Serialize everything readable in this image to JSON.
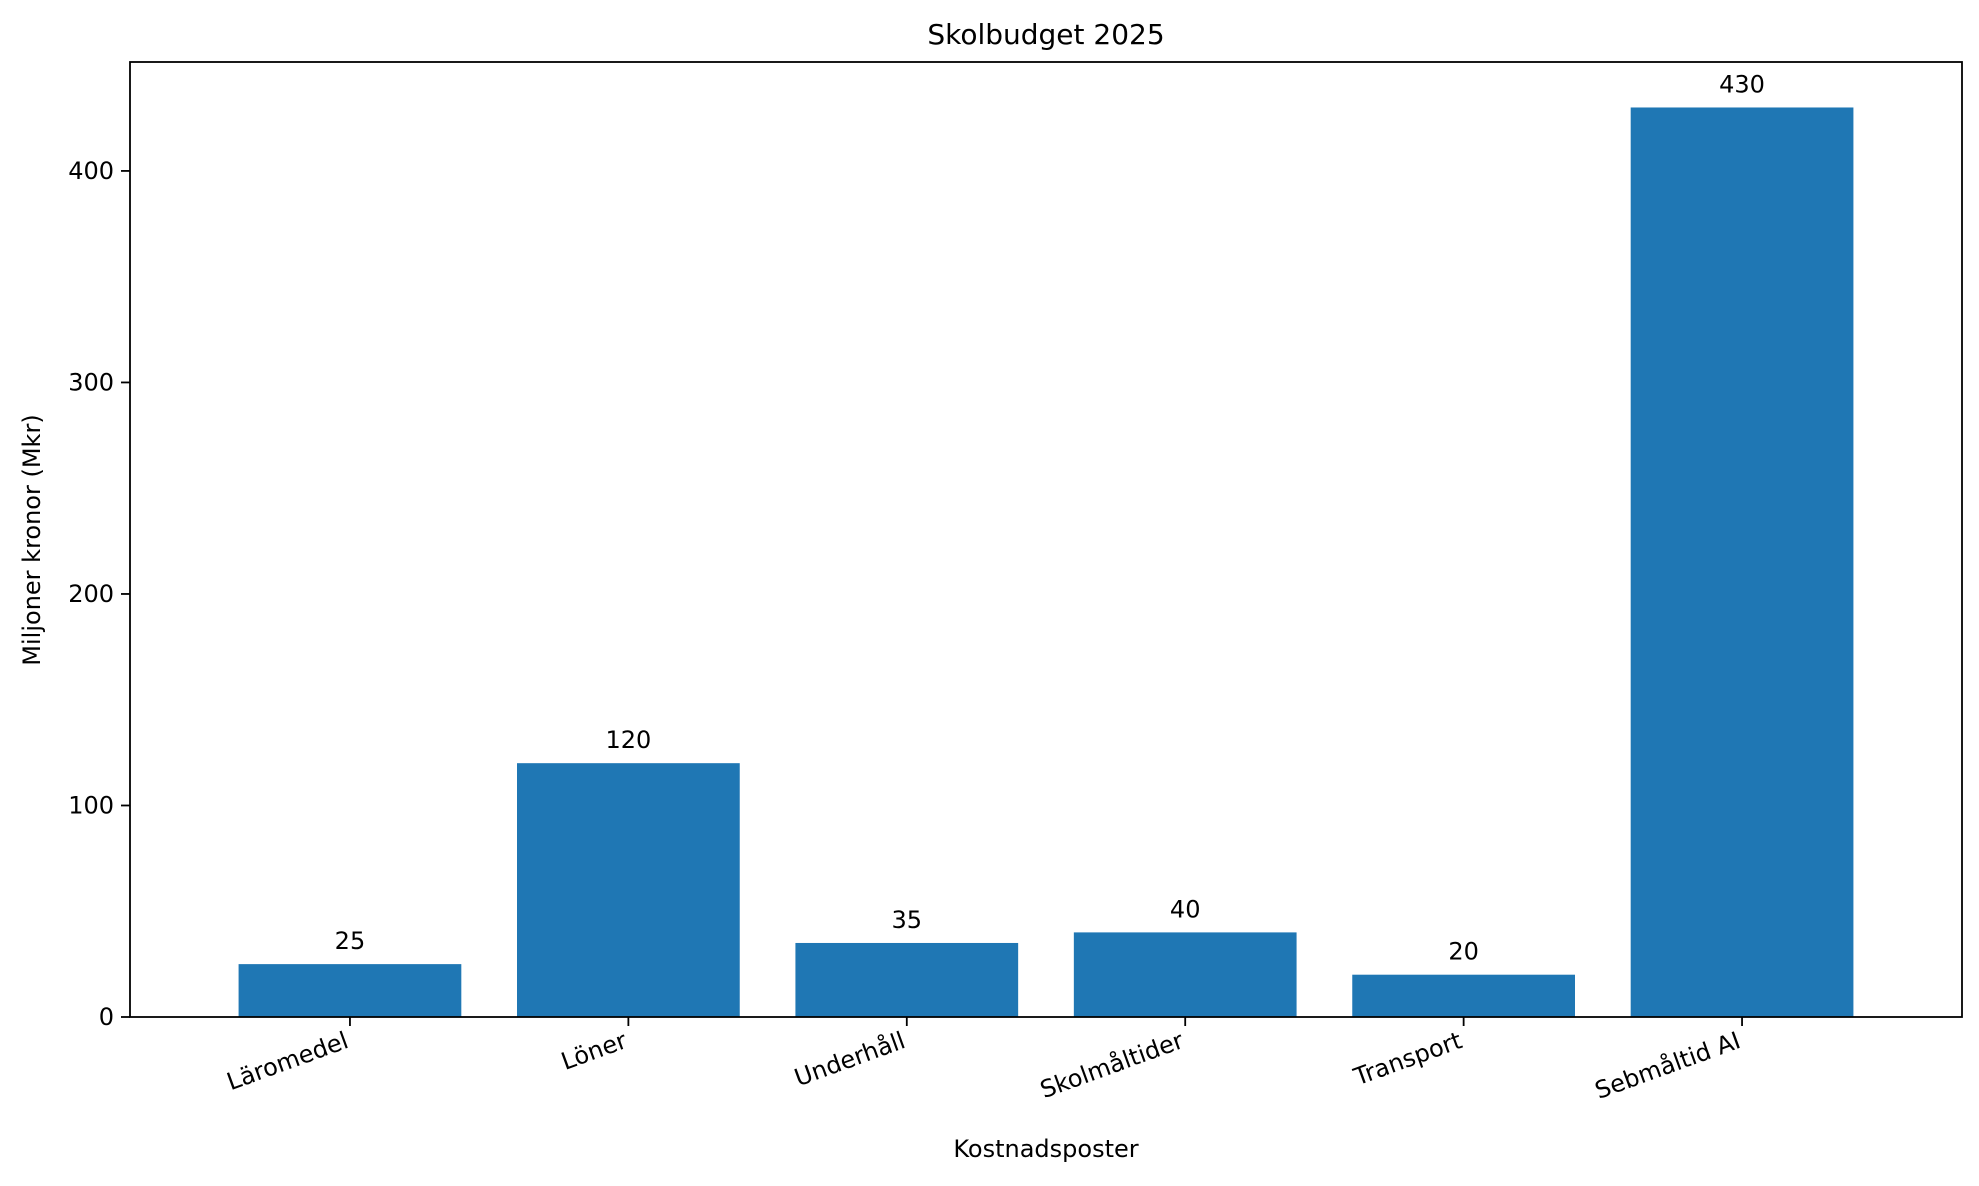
{
  "chart_data": {
    "type": "bar",
    "title": "Skolbudget 2025",
    "xlabel": "Kostnadsposter",
    "ylabel": "Miljoner kronor (Mkr)",
    "categories": [
      "Läromedel",
      "Löner",
      "Underhåll",
      "Skolmåltider",
      "Transport",
      "Sebmåltid AI"
    ],
    "values": [
      25,
      120,
      35,
      40,
      20,
      430
    ],
    "value_labels": [
      "25",
      "120",
      "35",
      "40",
      "20",
      "430"
    ],
    "ylim": [
      0,
      451.5
    ],
    "yticks": [
      0,
      100,
      200,
      300,
      400
    ],
    "ytick_labels": [
      "0",
      "100",
      "200",
      "300",
      "400"
    ],
    "bar_color": "#1f77b4",
    "grid": false,
    "legend": "none",
    "xtick_rotation_deg": 20
  }
}
